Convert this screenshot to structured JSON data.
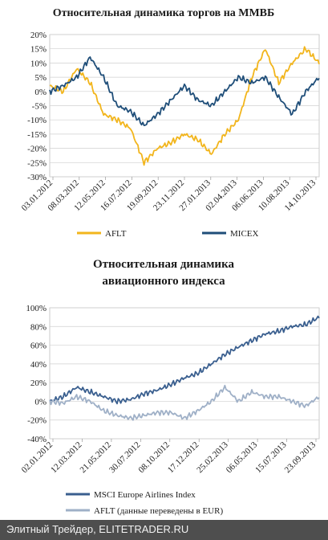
{
  "chart_data": [
    {
      "type": "line",
      "title": "Относительная динамика торгов на ММВБ",
      "ylim": [
        -30,
        20
      ],
      "y_ticks": [
        "20%",
        "15%",
        "10%",
        "5%",
        "0%",
        "-5%",
        "-10%",
        "-15%",
        "-20%",
        "-25%",
        "-30%"
      ],
      "x_ticks": [
        "03.01.2012",
        "08.03.2012",
        "12.05.2012",
        "16.07.2012",
        "19.09.2012",
        "23.11.2012",
        "27.01.2013",
        "02.04.2013",
        "06.06.2013",
        "10.08.2013",
        "14.10.2013"
      ],
      "grid": true,
      "legend_position": "bottom",
      "series": [
        {
          "name": "AFLT",
          "color": "#f2b51c",
          "x": [
            0,
            5,
            10,
            15,
            20,
            25,
            30,
            35,
            40,
            45,
            50,
            55,
            60,
            65,
            70,
            75,
            80,
            85,
            90,
            95,
            100
          ],
          "values": [
            2,
            0,
            8,
            3,
            -8,
            -10,
            -13,
            -25,
            -20,
            -18,
            -15,
            -17,
            -22,
            -15,
            -10,
            5,
            15,
            3,
            10,
            15,
            10
          ]
        },
        {
          "name": "MICEX",
          "color": "#1f4e79",
          "x": [
            0,
            5,
            10,
            15,
            20,
            25,
            30,
            35,
            40,
            45,
            50,
            55,
            60,
            65,
            70,
            75,
            80,
            85,
            90,
            95,
            100
          ],
          "values": [
            0,
            2,
            5,
            12,
            5,
            -5,
            -7,
            -12,
            -8,
            -3,
            2,
            -3,
            -5,
            0,
            5,
            3,
            5,
            -2,
            -8,
            0,
            5
          ]
        }
      ]
    },
    {
      "type": "line",
      "title": "Относительная динамика авиационного индекса",
      "title_lines": [
        "Относительная динамика",
        "авиационного индекса"
      ],
      "ylim": [
        -40,
        100
      ],
      "y_ticks": [
        "100%",
        "80%",
        "60%",
        "40%",
        "20%",
        "0%",
        "-20%",
        "-40%"
      ],
      "x_ticks": [
        "02.01.2012",
        "12.03.2012",
        "21.05.2012",
        "30.07.2012",
        "08.10.2012",
        "17.12.2012",
        "25.02.2013",
        "06.05.2013",
        "15.07.2013",
        "23.09.2013"
      ],
      "grid": true,
      "legend_position": "bottom",
      "series": [
        {
          "name": "MSCI Europe Airlines Index",
          "color": "#3a5f8f",
          "x": [
            0,
            5,
            10,
            15,
            20,
            25,
            30,
            35,
            40,
            45,
            50,
            55,
            60,
            65,
            70,
            75,
            80,
            85,
            90,
            95,
            100
          ],
          "values": [
            0,
            5,
            15,
            10,
            5,
            0,
            2,
            8,
            12,
            18,
            25,
            30,
            40,
            50,
            58,
            65,
            72,
            75,
            80,
            82,
            90
          ]
        },
        {
          "name": "AFLT (данные переведены в EUR)",
          "color": "#9fb0c7",
          "x": [
            0,
            5,
            10,
            15,
            20,
            25,
            30,
            35,
            40,
            45,
            50,
            55,
            60,
            65,
            70,
            75,
            80,
            85,
            90,
            95,
            100
          ],
          "values": [
            0,
            -2,
            5,
            0,
            -10,
            -15,
            -18,
            -15,
            -12,
            -12,
            -18,
            -10,
            0,
            15,
            0,
            10,
            5,
            5,
            0,
            -5,
            5
          ]
        }
      ]
    }
  ],
  "footer": {
    "text": "Элитный Трейдер, ELITETRADER.RU"
  }
}
